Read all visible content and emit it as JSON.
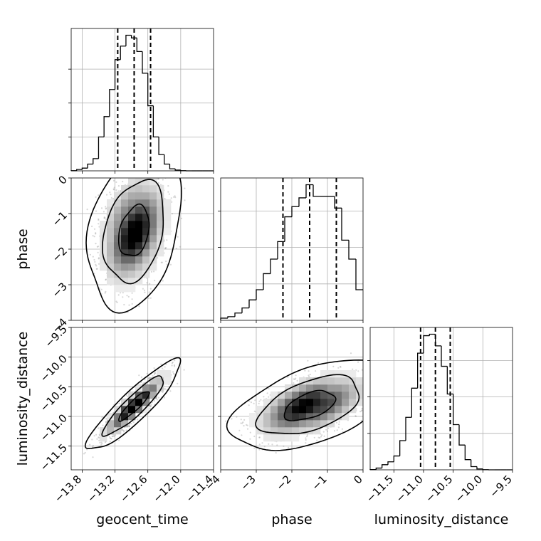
{
  "chart_data": {
    "type": "corner",
    "parameters": [
      "geocent_time",
      "phase",
      "luminosity_distance"
    ],
    "ranges": {
      "geocent_time": [
        -14.0,
        -11.4
      ],
      "phase": [
        -4.0,
        0.0
      ],
      "luminosity_distance": [
        -11.9,
        -9.5
      ]
    },
    "ticks": {
      "geocent_time": [
        -13.8,
        -13.2,
        -12.6,
        -12.0,
        -11.4
      ],
      "phase": [
        -4,
        -3,
        -2,
        -1,
        0
      ],
      "luminosity_distance": [
        -11.5,
        -11.0,
        -10.5,
        -10.0,
        -9.5
      ]
    },
    "tick_labels": {
      "geocent_time": [
        "−13.8",
        "−13.2",
        "−12.6",
        "−12.0",
        "−11.4"
      ],
      "phase": [
        "−4",
        "−3",
        "−2",
        "−1",
        "0"
      ],
      "luminosity_distance": [
        "−11.5",
        "−11.0",
        "−10.5",
        "−10.0",
        "−9.5"
      ]
    },
    "quantiles": {
      "geocent_time": [
        -13.15,
        -12.85,
        -12.55
      ],
      "phase": [
        -2.25,
        -1.5,
        -0.75
      ],
      "luminosity_distance": [
        -11.05,
        -10.8,
        -10.55
      ]
    },
    "histograms": {
      "geocent_time": {
        "bin_edges": [
          -14.0,
          -13.9,
          -13.8,
          -13.7,
          -13.6,
          -13.5,
          -13.4,
          -13.3,
          -13.2,
          -13.1,
          -13.0,
          -12.9,
          -12.8,
          -12.7,
          -12.6,
          -12.5,
          -12.4,
          -12.3,
          -12.2,
          -12.1,
          -12.0,
          -11.9,
          -11.8,
          -11.7,
          -11.6,
          -11.5,
          -11.4
        ],
        "counts": [
          0.1,
          1,
          2,
          5,
          9,
          25,
          40,
          60,
          82,
          92,
          100,
          98,
          88,
          72,
          48,
          25,
          12,
          5,
          1.5,
          0.6,
          0.1,
          0,
          0,
          0,
          0,
          0
        ]
      },
      "phase": {
        "bin_edges": [
          -4.0,
          -3.8,
          -3.6,
          -3.4,
          -3.2,
          -3.0,
          -2.8,
          -2.6,
          -2.4,
          -2.2,
          -2.0,
          -1.8,
          -1.6,
          -1.4,
          -1.2,
          -1.0,
          -0.8,
          -0.6,
          -0.4,
          -0.2,
          0.0
        ],
        "counts": [
          1.5,
          2.5,
          5,
          8.5,
          14,
          21,
          32,
          42,
          54,
          71,
          78,
          84,
          93,
          85,
          85,
          85,
          77,
          55,
          42,
          21
        ]
      },
      "luminosity_distance": {
        "bin_edges": [
          -11.9,
          -11.8,
          -11.7,
          -11.6,
          -11.5,
          -11.4,
          -11.3,
          -11.2,
          -11.1,
          -11.0,
          -10.9,
          -10.8,
          -10.7,
          -10.6,
          -10.5,
          -10.4,
          -10.3,
          -10.2,
          -10.1,
          -10.0,
          -9.9,
          -9.8,
          -9.7,
          -9.6,
          -9.5
        ],
        "counts": [
          0.2,
          1.2,
          3.5,
          5.5,
          9.5,
          20,
          36,
          56,
          80,
          92,
          93,
          85,
          71,
          52,
          31,
          17,
          7,
          2.2,
          0.6,
          0.1,
          0,
          0,
          0,
          0
        ]
      }
    },
    "joint": [
      {
        "x": "geocent_time",
        "y": "phase",
        "mean": [
          -12.85,
          -1.5
        ],
        "sd": [
          0.28,
          0.72
        ],
        "corr": 0.28,
        "scatter_seed": 17,
        "hist2d_bins": 20
      },
      {
        "x": "geocent_time",
        "y": "luminosity_distance",
        "mean": [
          -12.85,
          -10.82
        ],
        "sd": [
          0.28,
          0.25
        ],
        "corr": 0.9,
        "scatter_seed": 29,
        "hist2d_bins": 20
      },
      {
        "x": "phase",
        "y": "luminosity_distance",
        "mean": [
          -1.5,
          -10.82
        ],
        "sd": [
          0.72,
          0.25
        ],
        "corr": 0.5,
        "scatter_seed": 41,
        "hist2d_bins": 20
      }
    ],
    "contour_levels": [
      0.39,
      0.86,
      0.99
    ],
    "xlabels": [
      "geocent_time",
      "phase",
      "luminosity_distance"
    ],
    "ylabels": [
      "phase",
      "luminosity_distance"
    ],
    "grid": true
  }
}
